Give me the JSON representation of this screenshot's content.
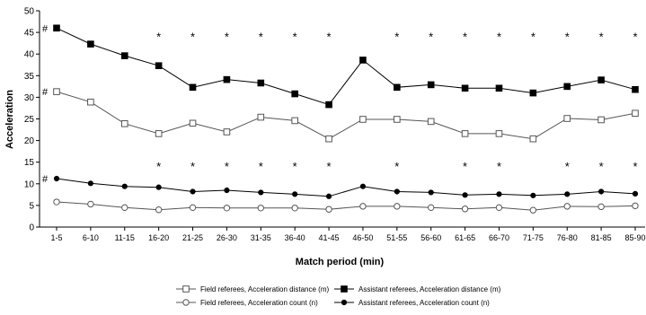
{
  "chart_data": {
    "type": "line",
    "title": "",
    "xlabel": "Match period (min)",
    "ylabel": "Acceleration",
    "ylim": [
      0,
      50
    ],
    "yticks": [
      0,
      5,
      10,
      15,
      20,
      25,
      30,
      35,
      40,
      45,
      50
    ],
    "grid": false,
    "legend_position": "bottom",
    "categories": [
      "1-5",
      "6-10",
      "11-15",
      "16-20",
      "21-25",
      "26-30",
      "31-35",
      "36-40",
      "41-45",
      "46-50",
      "51-55",
      "56-60",
      "61-65",
      "66-70",
      "71-75",
      "76-80",
      "81-85",
      "85-90"
    ],
    "series": [
      {
        "name": "Assistant referees, Acceleration distance (m)",
        "marker": "filled-square",
        "color": "#000000",
        "values": [
          46.0,
          42.3,
          39.6,
          37.3,
          32.3,
          34.1,
          33.3,
          30.8,
          28.3,
          38.6,
          32.3,
          32.9,
          32.1,
          32.1,
          31.0,
          32.5,
          34.0,
          31.8
        ]
      },
      {
        "name": "Field referees, Acceleration distance (m)",
        "marker": "open-square",
        "color": "#555555",
        "values": [
          31.3,
          28.9,
          23.9,
          21.6,
          24.0,
          22.0,
          25.4,
          24.6,
          20.4,
          24.9,
          24.9,
          24.4,
          21.6,
          21.6,
          20.4,
          25.1,
          24.8,
          26.3
        ]
      },
      {
        "name": "Assistant referees, Acceleration count (n)",
        "marker": "filled-circle",
        "color": "#000000",
        "values": [
          11.2,
          10.1,
          9.4,
          9.2,
          8.2,
          8.5,
          8.0,
          7.6,
          7.1,
          9.4,
          8.2,
          8.0,
          7.4,
          7.6,
          7.3,
          7.6,
          8.2,
          7.7
        ]
      },
      {
        "name": "Field referees, Acceleration count (n)",
        "marker": "open-circle",
        "color": "#555555",
        "values": [
          5.8,
          5.3,
          4.5,
          4.0,
          4.5,
          4.4,
          4.4,
          4.4,
          4.1,
          4.8,
          4.8,
          4.5,
          4.2,
          4.5,
          3.9,
          4.8,
          4.7,
          4.9
        ]
      }
    ],
    "annotations": {
      "hash_symbol": "#",
      "star_symbol": "*",
      "hash_markers": [
        {
          "series_index": 0,
          "category_index": 0
        },
        {
          "series_index": 1,
          "category_index": 0
        },
        {
          "series_index": 2,
          "category_index": 0
        }
      ],
      "star_rows": [
        {
          "y": 44.5,
          "category_indices": [
            3,
            4,
            5,
            6,
            7,
            8,
            10,
            11,
            12,
            13,
            14,
            15,
            16,
            17
          ]
        },
        {
          "y": 14.5,
          "category_indices": [
            3,
            4,
            5,
            6,
            7,
            8,
            10,
            12,
            13,
            15,
            16,
            17
          ]
        }
      ]
    },
    "legend_order": [
      1,
      0,
      3,
      2
    ]
  }
}
